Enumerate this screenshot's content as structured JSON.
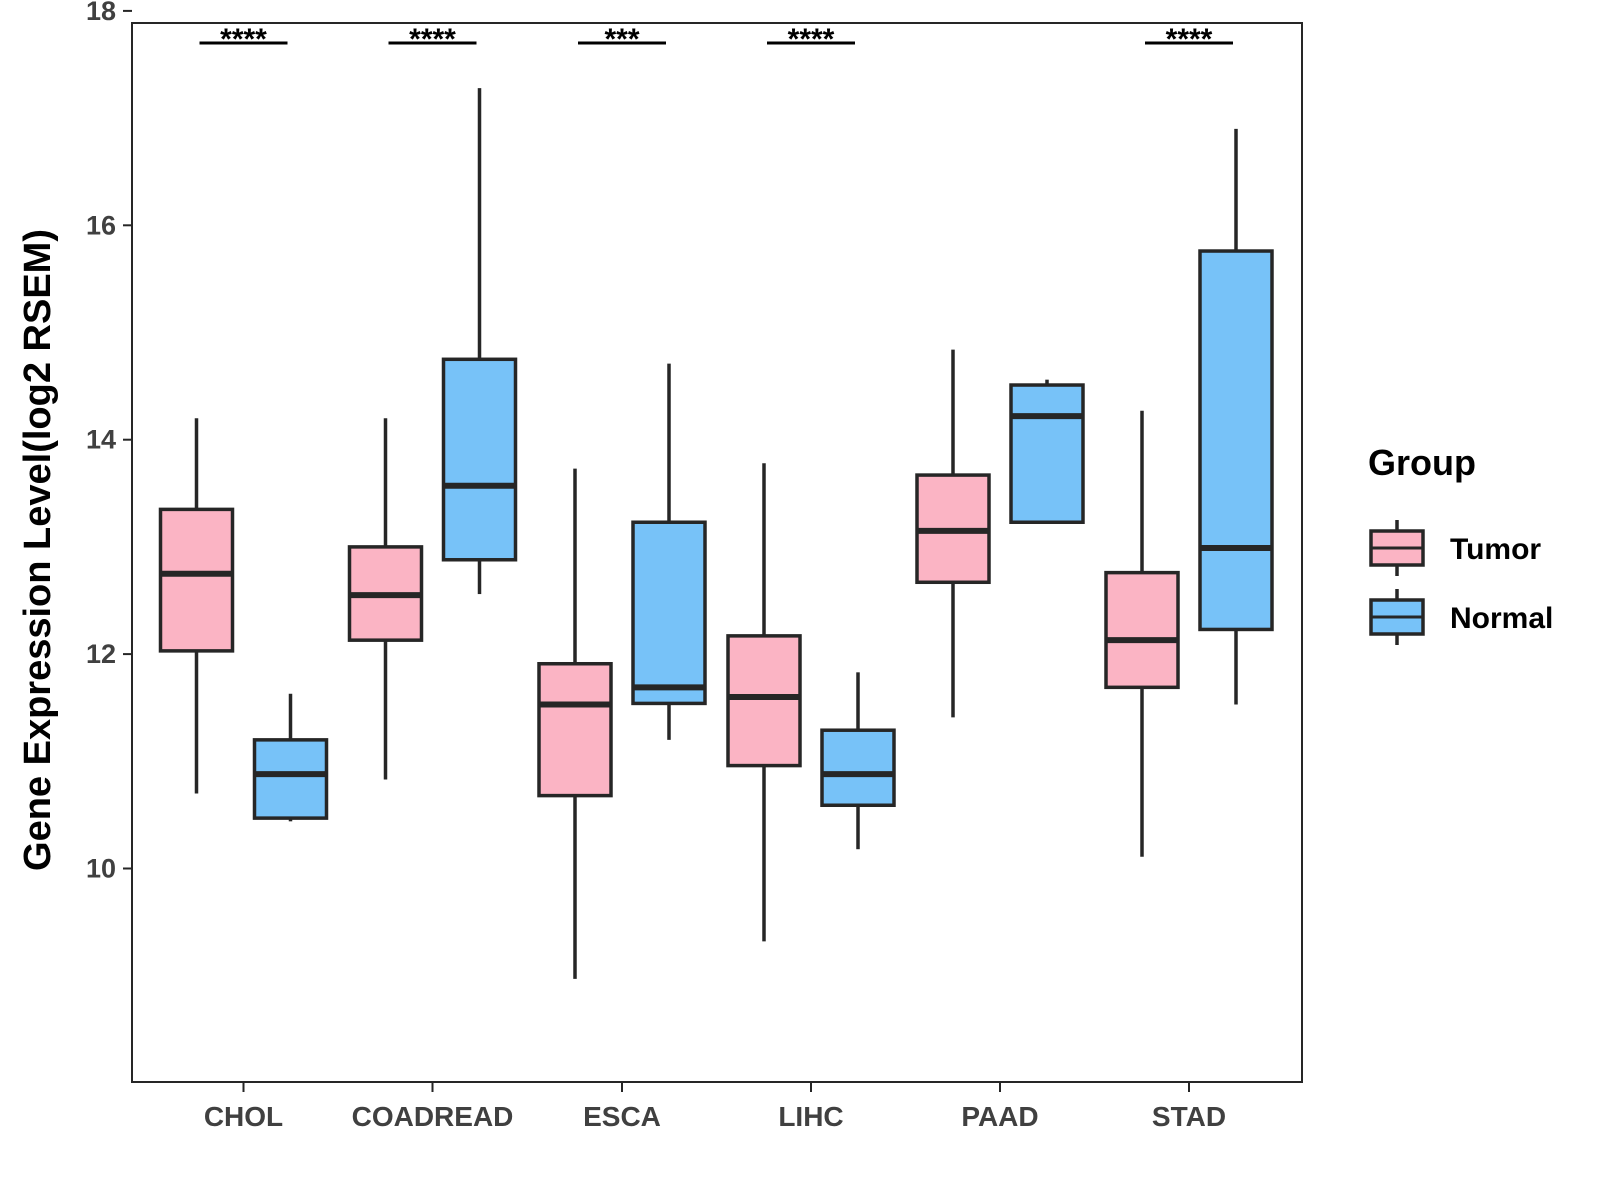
{
  "chart_data": {
    "type": "boxplot",
    "title": "",
    "xlabel": "",
    "ylabel": "Gene Expression Level(log2 RSEM)",
    "ylim": [
      8.2,
      18.15
    ],
    "yticks": [
      10,
      12,
      14,
      16,
      18
    ],
    "ytick_labels": [
      "10",
      "12",
      "14",
      "16",
      "18"
    ],
    "categories": [
      "CHOL",
      "COADREAD",
      "ESCA",
      "LIHC",
      "PAAD",
      "STAD"
    ],
    "legend": {
      "title": "Group",
      "position": "right",
      "items": [
        {
          "label": "Tumor",
          "color": "#FBB4C4"
        },
        {
          "label": "Normal",
          "color": "#77C2F8"
        }
      ]
    },
    "series": [
      {
        "name": "Tumor",
        "color": "#FBB4C4",
        "boxes": [
          {
            "whisker_low": 10.7,
            "q1": 12.03,
            "median": 12.75,
            "q3": 13.35,
            "whisker_high": 14.2
          },
          {
            "whisker_low": 10.83,
            "q1": 12.13,
            "median": 12.55,
            "q3": 13.0,
            "whisker_high": 14.2
          },
          {
            "whisker_low": 8.97,
            "q1": 10.68,
            "median": 11.53,
            "q3": 11.91,
            "whisker_high": 13.73
          },
          {
            "whisker_low": 9.32,
            "q1": 10.96,
            "median": 11.6,
            "q3": 12.17,
            "whisker_high": 13.78
          },
          {
            "whisker_low": 11.41,
            "q1": 12.67,
            "median": 13.15,
            "q3": 13.67,
            "whisker_high": 14.84
          },
          {
            "whisker_low": 10.11,
            "q1": 11.69,
            "median": 12.13,
            "q3": 12.76,
            "whisker_high": 14.27
          }
        ]
      },
      {
        "name": "Normal",
        "color": "#77C2F8",
        "boxes": [
          {
            "whisker_low": 10.44,
            "q1": 10.47,
            "median": 10.88,
            "q3": 11.2,
            "whisker_high": 11.63
          },
          {
            "whisker_low": 12.56,
            "q1": 12.88,
            "median": 13.57,
            "q3": 14.75,
            "whisker_high": 17.28
          },
          {
            "whisker_low": 11.2,
            "q1": 11.54,
            "median": 11.69,
            "q3": 13.23,
            "whisker_high": 14.71
          },
          {
            "whisker_low": 10.18,
            "q1": 10.59,
            "median": 10.88,
            "q3": 11.29,
            "whisker_high": 11.83
          },
          {
            "whisker_low": 13.23,
            "q1": 13.23,
            "median": 14.22,
            "q3": 14.51,
            "whisker_high": 14.56
          },
          {
            "whisker_low": 11.53,
            "q1": 12.23,
            "median": 12.99,
            "q3": 15.76,
            "whisker_high": 16.9
          }
        ]
      }
    ],
    "significance": [
      {
        "category": "CHOL",
        "label": "****"
      },
      {
        "category": "COADREAD",
        "label": "****"
      },
      {
        "category": "ESCA",
        "label": "***"
      },
      {
        "category": "LIHC",
        "label": "****"
      },
      {
        "category": "PAAD",
        "label": ""
      },
      {
        "category": "STAD",
        "label": "****"
      }
    ],
    "significance_level": 17.7
  }
}
